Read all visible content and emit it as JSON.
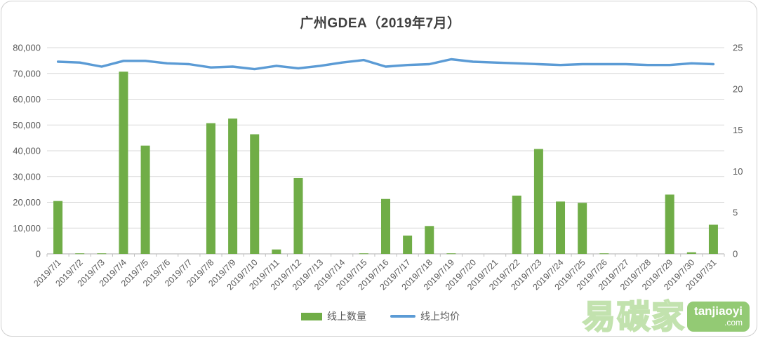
{
  "title": "广州GDEA（2019年7月）",
  "legend": {
    "bar_label": "线上数量",
    "line_label": "线上均价"
  },
  "watermark": {
    "brand": "易碳家",
    "badge_line1": "tanjiaoyi",
    "badge_line2": ".com"
  },
  "colors": {
    "bar": "#70AD47",
    "line": "#5B9BD5",
    "gridline": "#D9D9D9",
    "axis_line": "#BFBFBF",
    "tick_text": "#595959",
    "title_text": "#3F3F3F",
    "watermark_green": "#93ca74"
  },
  "chart_data": {
    "type": "bar+line combo",
    "title": "广州GDEA（2019年7月）",
    "grid": true,
    "legend_position": "bottom",
    "categories": [
      "2019/7/1",
      "2019/7/2",
      "2019/7/3",
      "2019/7/4",
      "2019/7/5",
      "2019/7/6",
      "2019/7/7",
      "2019/7/8",
      "2019/7/9",
      "2019/7/10",
      "2019/7/11",
      "2019/7/12",
      "2019/7/13",
      "2019/7/14",
      "2019/7/15",
      "2019/7/16",
      "2019/7/17",
      "2019/7/18",
      "2019/7/19",
      "2019/7/20",
      "2019/7/21",
      "2019/7/22",
      "2019/7/23",
      "2019/7/24",
      "2019/7/25",
      "2019/7/26",
      "2019/7/27",
      "2019/7/28",
      "2019/7/29",
      "2019/7/30",
      "2019/7/31"
    ],
    "series": [
      {
        "name": "线上数量",
        "type": "bar",
        "axis": "left",
        "color": "#70AD47",
        "values": [
          20500,
          200,
          200,
          70700,
          42000,
          0,
          0,
          50700,
          52500,
          46400,
          1700,
          29400,
          0,
          0,
          200,
          21300,
          7100,
          10800,
          200,
          0,
          0,
          22600,
          40700,
          20300,
          19800,
          200,
          0,
          0,
          23000,
          600,
          11300
        ]
      },
      {
        "name": "线上均价",
        "type": "line",
        "axis": "right",
        "color": "#5B9BD5",
        "values": [
          23.3,
          23.2,
          22.7,
          23.4,
          23.4,
          23.1,
          23.0,
          22.6,
          22.7,
          22.4,
          22.8,
          22.5,
          22.8,
          23.2,
          23.5,
          22.7,
          22.9,
          23.0,
          23.6,
          23.3,
          23.2,
          23.1,
          23.0,
          22.9,
          23.0,
          23.0,
          23.0,
          22.9,
          22.9,
          23.1,
          23.0
        ]
      }
    ],
    "left_axis": {
      "min": 0,
      "max": 80000,
      "step": 10000,
      "tick_labels": [
        "0",
        "10,000",
        "20,000",
        "30,000",
        "40,000",
        "50,000",
        "60,000",
        "70,000",
        "80,000"
      ]
    },
    "right_axis": {
      "min": 0,
      "max": 25,
      "step": 5,
      "tick_labels": [
        "0",
        "5",
        "10",
        "15",
        "20",
        "25"
      ]
    }
  }
}
